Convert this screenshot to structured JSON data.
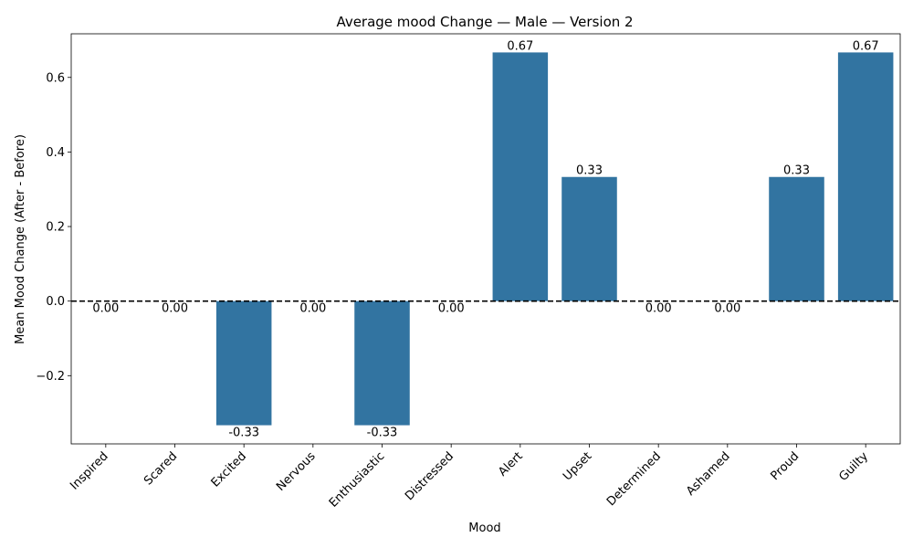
{
  "chart_data": {
    "type": "bar",
    "title": "Average mood Change — Male — Version 2",
    "xlabel": "Mood",
    "ylabel": "Mean Mood Change (After - Before)",
    "categories": [
      "Inspired",
      "Scared",
      "Excited",
      "Nervous",
      "Enthusiastic",
      "Distressed",
      "Alert",
      "Upset",
      "Determined",
      "Ashamed",
      "Proud",
      "Guilty"
    ],
    "values": [
      0.0,
      0.0,
      -0.333,
      0.0,
      -0.333,
      0.0,
      0.667,
      0.333,
      0.0,
      0.0,
      0.333,
      0.667
    ],
    "value_labels": [
      "0.00",
      "0.00",
      "-0.33",
      "0.00",
      "-0.33",
      "0.00",
      "0.67",
      "0.33",
      "0.00",
      "0.00",
      "0.33",
      "0.67"
    ],
    "yticks": [
      -0.2,
      0.0,
      0.2,
      0.4,
      0.6
    ],
    "ytick_labels": [
      "−0.2",
      "0.0",
      "0.2",
      "0.4",
      "0.6"
    ],
    "ylim": [
      -0.383,
      0.717
    ],
    "reference_line": 0,
    "bar_color": "#3274a1",
    "grid": false
  }
}
